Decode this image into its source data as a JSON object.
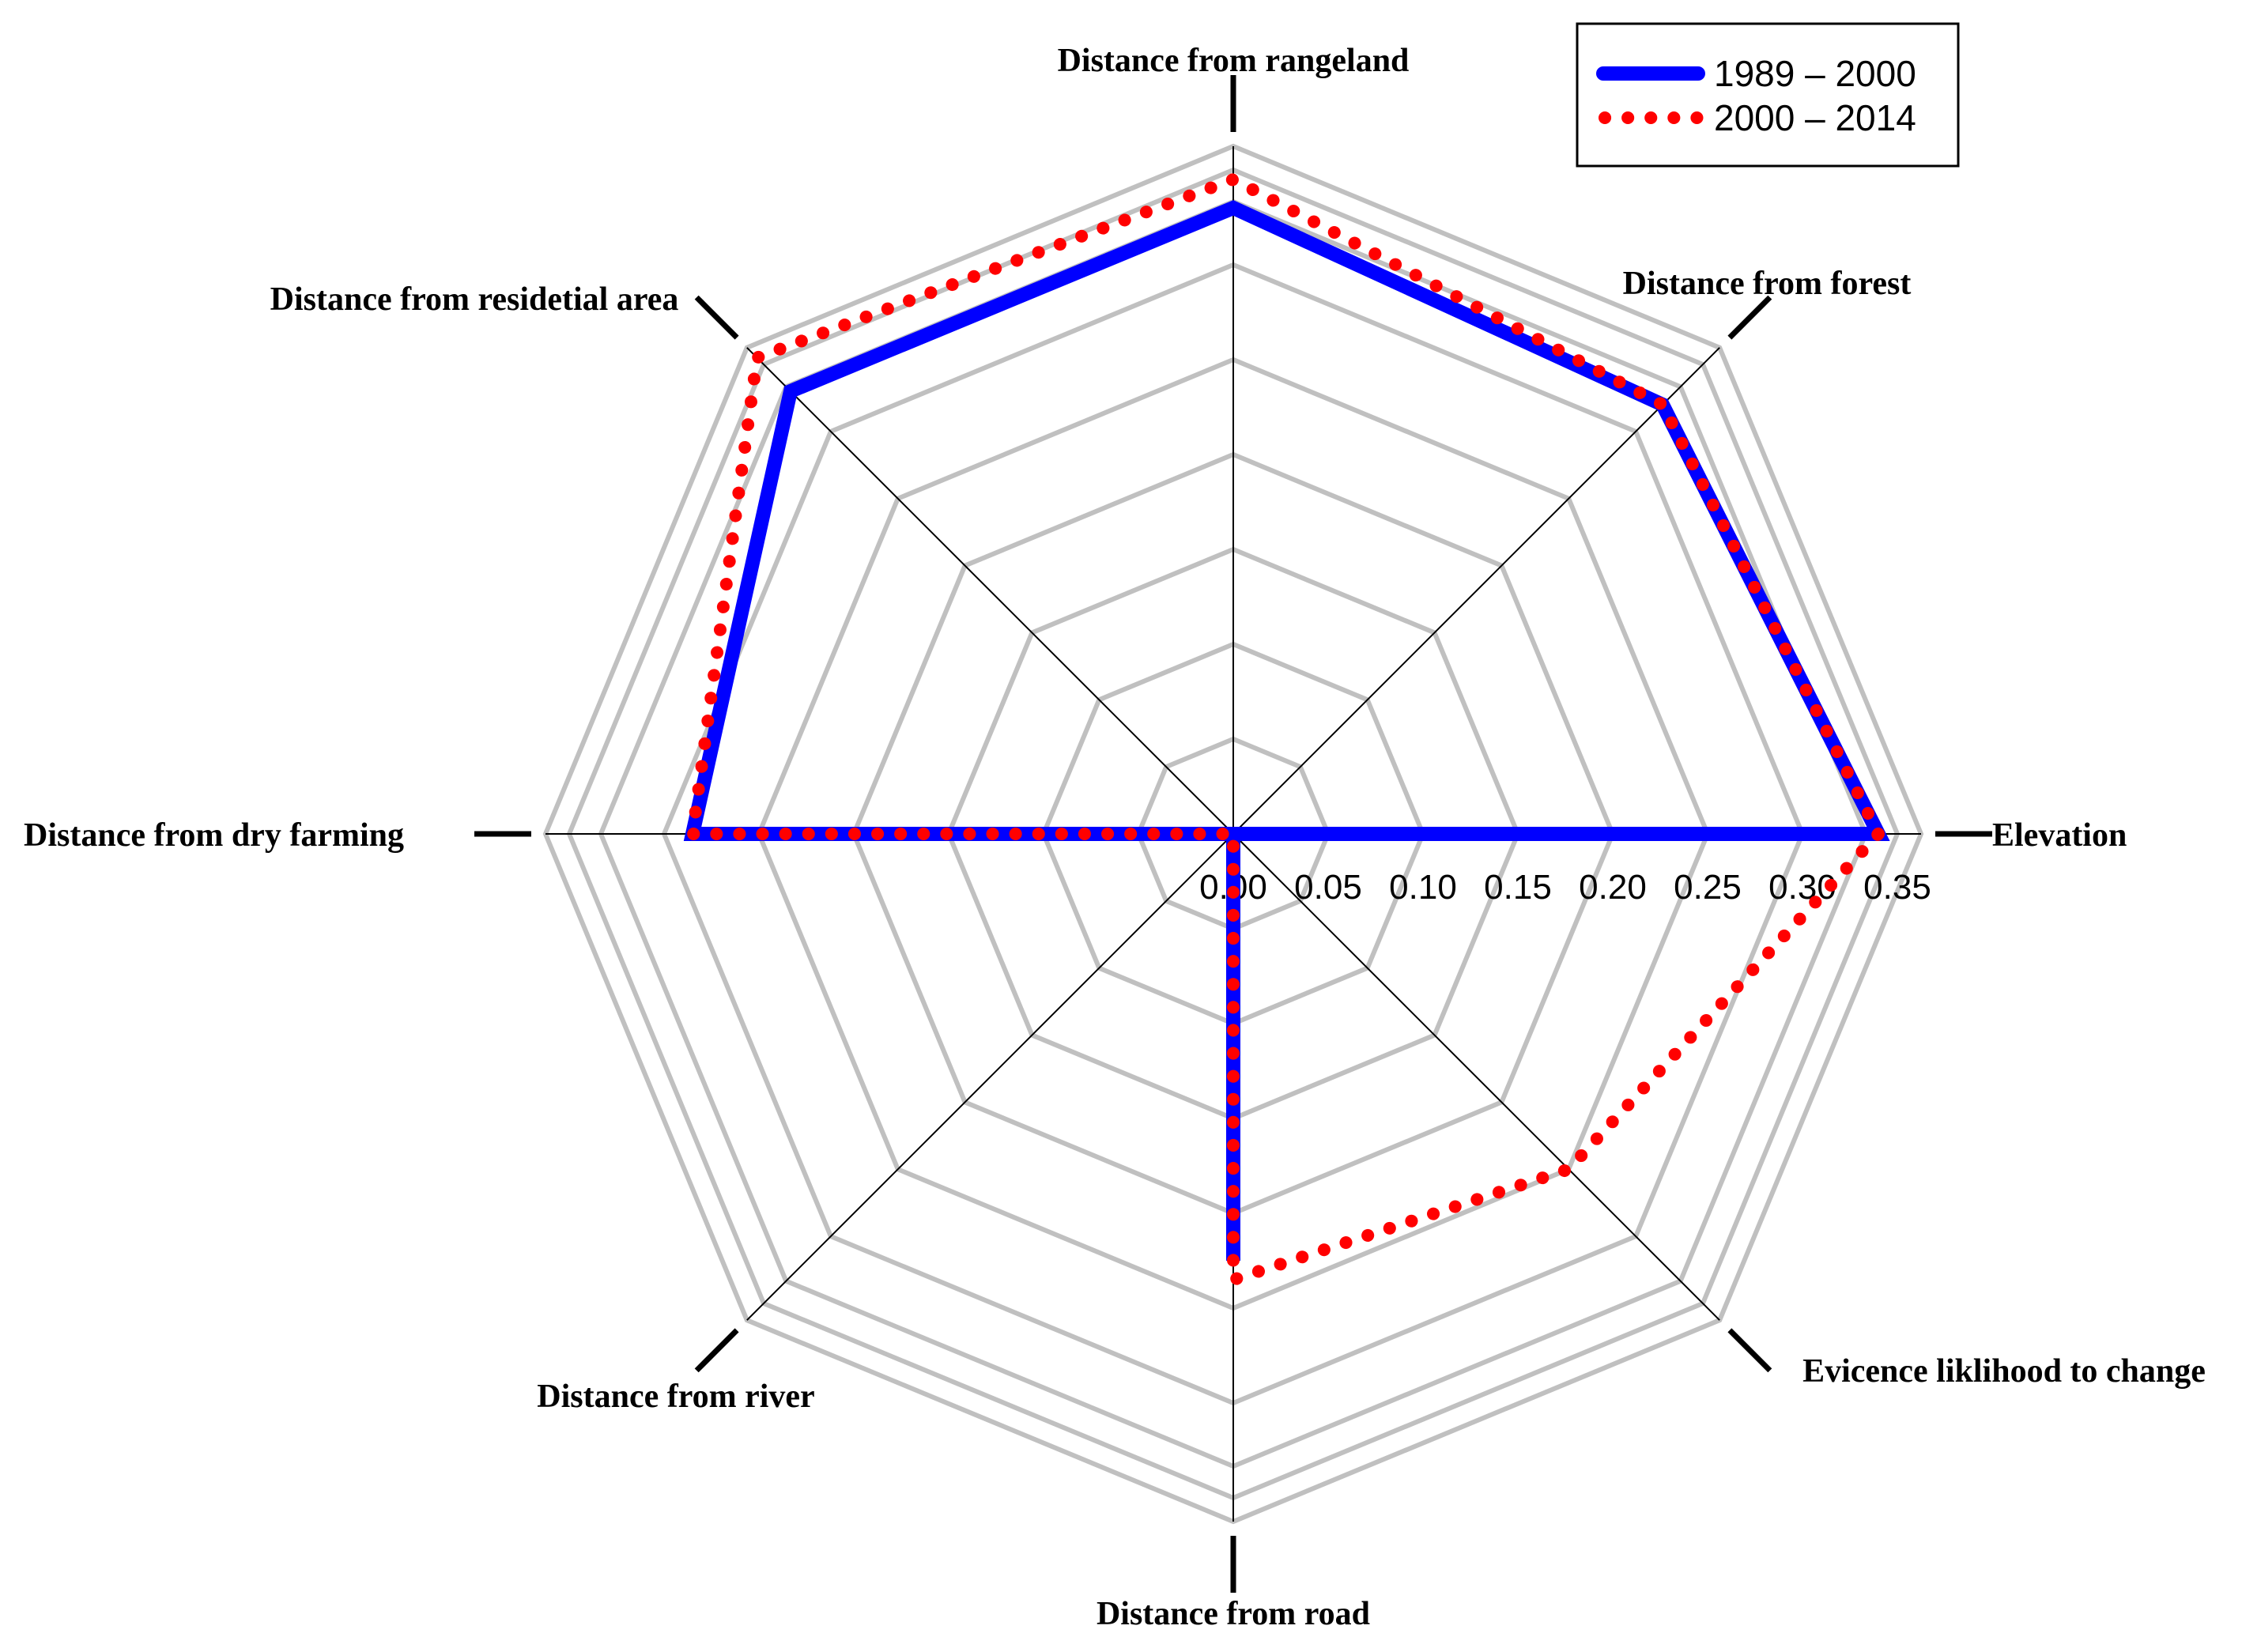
{
  "chart_data": {
    "type": "radar",
    "title": "",
    "axes": [
      "Elevation",
      "Distance from forest",
      "Distance from rangeland",
      "Distance from residetial area",
      "Distance from dry farming",
      "Distance from river",
      "Distance from road",
      "Evicence liklihood to change"
    ],
    "tick_labels": [
      "0.00",
      "0.05",
      "0.10",
      "0.15",
      "0.20",
      "0.25",
      "0.30",
      "0.35"
    ],
    "rlim": [
      0,
      0.35
    ],
    "series": [
      {
        "name": "1989 – 2000",
        "color": "#0000ff",
        "style": "solid",
        "values": [
          0.34,
          0.32,
          0.33,
          0.33,
          0.285,
          0.0,
          0.225,
          0.0
        ]
      },
      {
        "name": "2000 – 2014",
        "color": "#ff0000",
        "style": "dotted",
        "values": [
          0.34,
          0.32,
          0.345,
          0.355,
          0.285,
          0.0,
          0.235,
          0.25
        ]
      }
    ],
    "legend_position": "top-right"
  }
}
